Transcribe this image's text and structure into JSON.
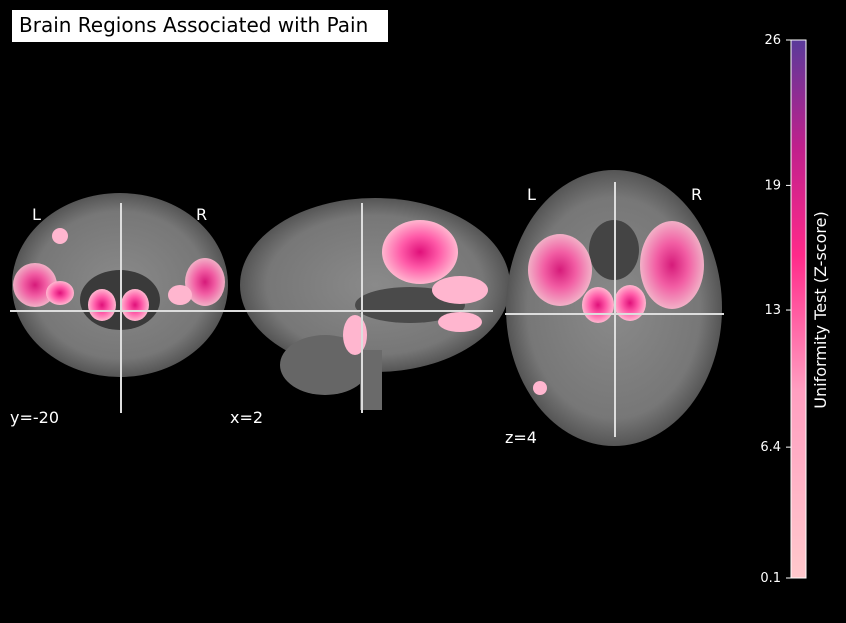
{
  "title": "Brain Regions Associated with Pain",
  "panels": [
    {
      "coordinate": "y=-20",
      "left": "L",
      "right": "R"
    },
    {
      "coordinate": "x=2"
    },
    {
      "coordinate": "z=4",
      "left": "L",
      "right": "R"
    }
  ],
  "colorbar": {
    "label": "Uniformity Test (Z-score)",
    "lim": [
      0.1,
      26
    ],
    "ticks": [
      0.1,
      6.4,
      13,
      19,
      26
    ]
  }
}
